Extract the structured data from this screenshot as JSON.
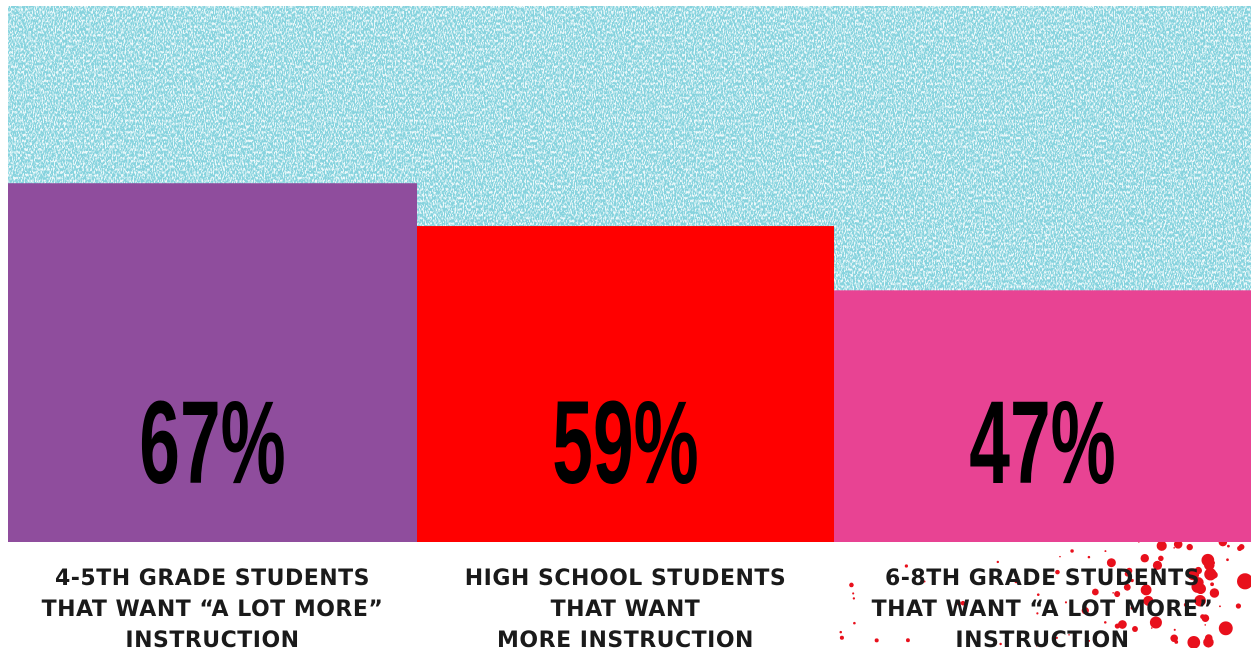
{
  "chart_data": {
    "type": "bar",
    "categories": [
      [
        "4-5TH GRADE STUDENTS",
        "THAT WANT “A LOT MORE”",
        "INSTRUCTION"
      ],
      [
        "HIGH SCHOOL STUDENTS",
        "THAT WANT",
        "MORE INSTRUCTION"
      ],
      [
        "6-8TH GRADE STUDENTS",
        "THAT WANT “A LOT MORE”",
        "INSTRUCTION"
      ]
    ],
    "values": [
      67,
      59,
      47
    ],
    "value_labels": [
      "67%",
      "59%",
      "47%"
    ],
    "title": "",
    "xlabel": "",
    "ylabel": "",
    "ylim": [
      0,
      100
    ],
    "grid": false,
    "legend": "none",
    "colors": {
      "bars": [
        "#8f4d9d",
        "#ff0000",
        "#e84393"
      ],
      "shadow": "#4a0f55",
      "sky": "#86d3de",
      "splatter": "#e8101c",
      "label_text": "#1a1a1a",
      "value_text": "#000000"
    }
  }
}
